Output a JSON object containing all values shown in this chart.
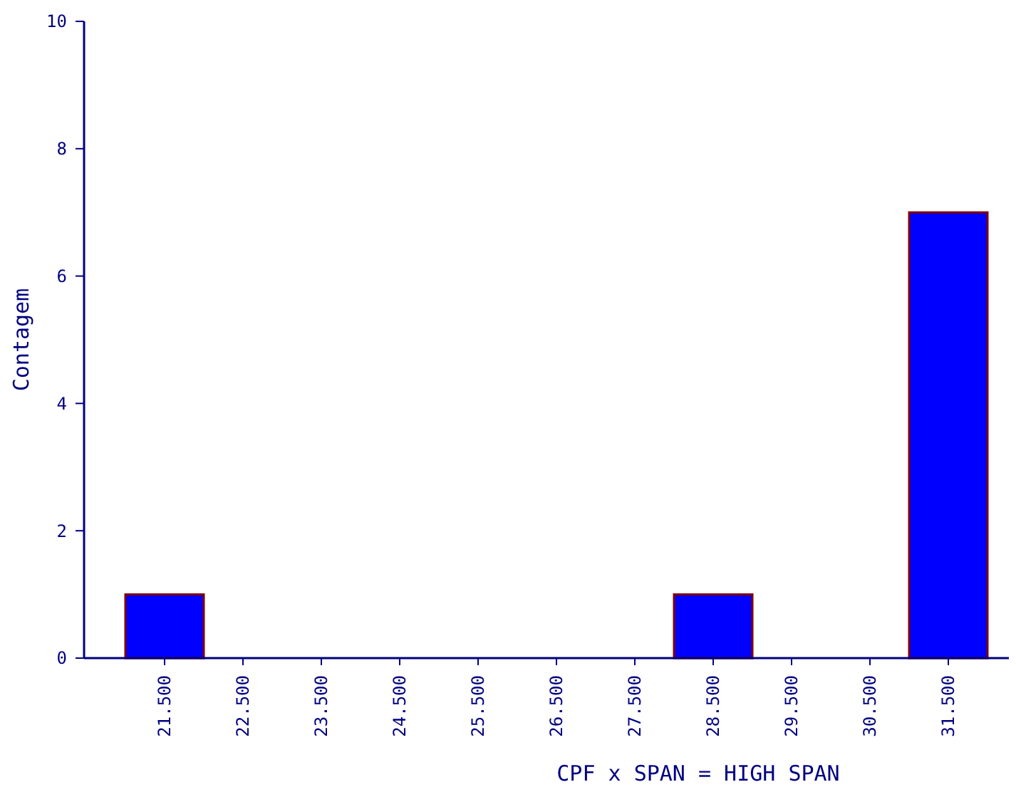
{
  "chart_data": {
    "type": "bar",
    "xlabel": "CPF x SPAN = HIGH SPAN",
    "ylabel": "Contagem",
    "categories": [
      "21.500",
      "22.500",
      "23.500",
      "24.500",
      "25.500",
      "26.500",
      "27.500",
      "28.500",
      "29.500",
      "30.500",
      "31.500"
    ],
    "values": [
      1,
      0,
      0,
      0,
      0,
      0,
      0,
      1,
      0,
      0,
      7
    ],
    "color": "#0000ff",
    "ylim": [
      0,
      10
    ],
    "yticks": [
      0,
      2,
      4,
      6,
      8,
      10
    ],
    "grid": false
  }
}
